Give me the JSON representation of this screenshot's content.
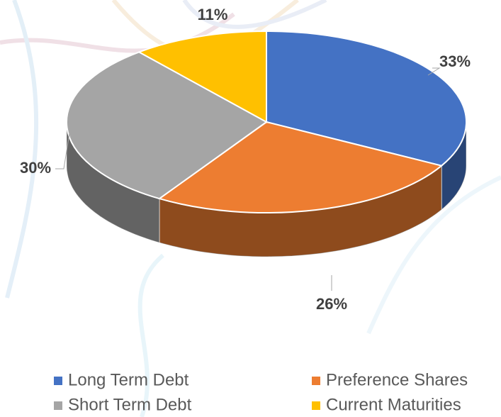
{
  "chart_data": {
    "type": "pie",
    "categories": [
      "Long Term Debt",
      "Preference Shares",
      "Short Term Debt",
      "Current Maturities"
    ],
    "values": [
      33,
      26,
      30,
      11
    ],
    "value_labels": [
      "33%",
      "26%",
      "30%",
      "11%"
    ],
    "colors": [
      "#4472c4",
      "#ed7d31",
      "#a5a5a5",
      "#ffc000"
    ]
  }
}
